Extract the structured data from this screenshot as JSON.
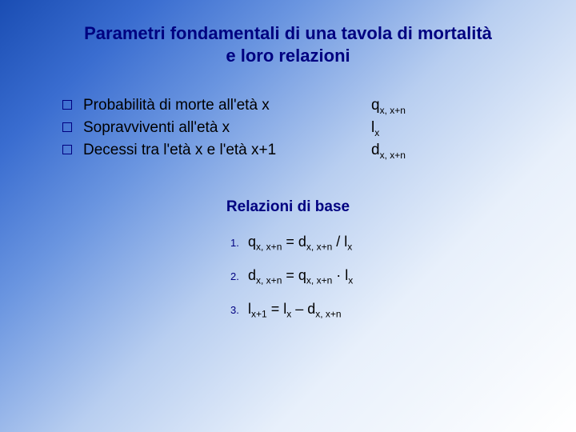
{
  "title_line1": "Parametri fondamentali di una tavola di mortalità",
  "title_line2": "e loro relazioni",
  "definitions": [
    {
      "text": "Probabilità di morte all'età x",
      "sym_base": "q",
      "sym_sub": "x, x+n"
    },
    {
      "text": "Sopravviventi all'età x",
      "sym_base": "l",
      "sym_sub": "x"
    },
    {
      "text": "Decessi tra l'età x e l'età x+1",
      "sym_base": "d",
      "sym_sub": "x, x+n"
    }
  ],
  "relations_heading": "Relazioni di base",
  "relations": [
    {
      "n": "1.",
      "lhs_base": "q",
      "lhs_sub": "x, x+n",
      "eq": " = ",
      "a_base": "d",
      "a_sub": "x, x+n",
      "op": " / ",
      "b_base": "l",
      "b_sub": "x"
    },
    {
      "n": "2.",
      "lhs_base": "d",
      "lhs_sub": "x, x+n",
      "eq": " = ",
      "a_base": "q",
      "a_sub": "x, x+n",
      "op": " · ",
      "b_base": "l",
      "b_sub": "x"
    },
    {
      "n": "3.",
      "lhs_base": "l",
      "lhs_sub": "x+1",
      "eq": " = ",
      "a_base": "l",
      "a_sub": "x",
      "op": " – ",
      "b_base": "d",
      "b_sub": "x, x+n"
    }
  ],
  "colors": {
    "heading": "#000080",
    "text": "#000000",
    "bullet_border": "#000080"
  }
}
